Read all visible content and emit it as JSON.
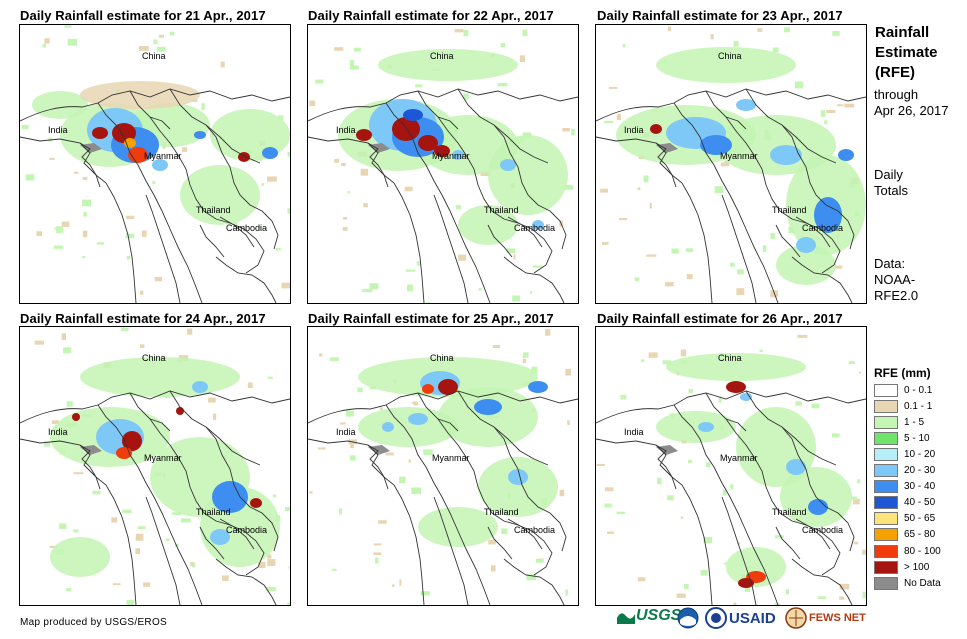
{
  "panels": [
    {
      "title": "Daily Rainfall estimate for 21 Apr., 2017",
      "labels": {
        "china": "China",
        "india": "India",
        "myanmar": "Myanmar",
        "thailand": "Thailand",
        "cambodia": "Cambodia"
      }
    },
    {
      "title": "Daily Rainfall estimate for 22 Apr., 2017",
      "labels": {
        "china": "China",
        "india": "India",
        "myanmar": "Myanmar",
        "thailand": "Thailand",
        "cambodia": "Cambodia"
      }
    },
    {
      "title": "Daily Rainfall estimate for 23 Apr., 2017",
      "labels": {
        "china": "China",
        "india": "India",
        "myanmar": "Myanmar",
        "thailand": "Thailand",
        "cambodia": "Cambodia"
      }
    },
    {
      "title": "Daily Rainfall estimate for 24 Apr., 2017",
      "labels": {
        "china": "China",
        "india": "India",
        "myanmar": "Myanmar",
        "thailand": "Thailand",
        "cambodia": "Cambodia"
      }
    },
    {
      "title": "Daily Rainfall estimate for 25 Apr., 2017",
      "labels": {
        "china": "China",
        "india": "India",
        "myanmar": "Myanmar",
        "thailand": "Thailand",
        "cambodia": "Cambodia"
      }
    },
    {
      "title": "Daily Rainfall estimate for 26 Apr., 2017",
      "labels": {
        "china": "China",
        "india": "India",
        "myanmar": "Myanmar",
        "thailand": "Thailand",
        "cambodia": "Cambodia"
      }
    }
  ],
  "sidebar": {
    "title_line1": "Rainfall",
    "title_line2": "Estimate",
    "title_line3": "(RFE)",
    "through": "through",
    "date": "Apr 26, 2017",
    "daily_line1": "Daily",
    "daily_line2": "Totals",
    "data_line1": "Data:",
    "data_line2": "NOAA-",
    "data_line3": "RFE2.0"
  },
  "legend": {
    "title": "RFE (mm)",
    "items": [
      {
        "label": "0 - 0.1",
        "color": "#ffffff"
      },
      {
        "label": "0.1 - 1",
        "color": "#e8d6b3"
      },
      {
        "label": "1 - 5",
        "color": "#c3f5b3"
      },
      {
        "label": "5 - 10",
        "color": "#6fe36a"
      },
      {
        "label": "10 - 20",
        "color": "#b5eef8"
      },
      {
        "label": "20 - 30",
        "color": "#7ec8f7"
      },
      {
        "label": "30 - 40",
        "color": "#3d8ef0"
      },
      {
        "label": "40 - 50",
        "color": "#1e57d6"
      },
      {
        "label": "50 - 65",
        "color": "#fbe27a"
      },
      {
        "label": "65 - 80",
        "color": "#f5a100"
      },
      {
        "label": "80 - 100",
        "color": "#f03c0c"
      },
      {
        "label": "> 100",
        "color": "#a5140f"
      },
      {
        "label": "No Data",
        "color": "#8c8c8c"
      }
    ]
  },
  "footer": {
    "credit": "Map produced by USGS/EROS"
  },
  "logos": {
    "usgs": "USGS",
    "usaid": "USAID",
    "fewsnet": "FEWS NET"
  }
}
